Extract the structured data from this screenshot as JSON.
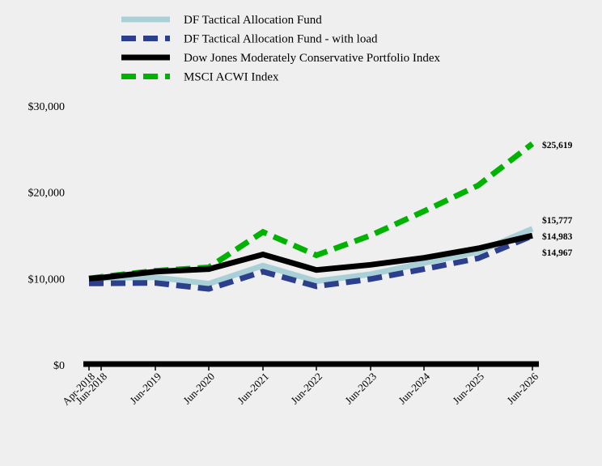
{
  "chart_data": {
    "type": "line",
    "title": "",
    "xlabel": "",
    "ylabel": "",
    "x": [
      "Apr-2018",
      "Jun-2018",
      "Jun-2019",
      "Jun-2020",
      "Jun-2021",
      "Jun-2022",
      "Jun-2023",
      "Jun-2024",
      "Jun-2025",
      "Jun-2026"
    ],
    "x_ticks": [
      "Apr-2018",
      "Jun-2018",
      "Jun-2019",
      "Jun-2020",
      "Jun-2021",
      "Jun-2022",
      "Jun-2023",
      "Jun-2024",
      "Jun-2025",
      "Jun-2026"
    ],
    "y_ticks": [
      "$0",
      "$10,000",
      "$20,000",
      "$30,000"
    ],
    "ylim": [
      0,
      30000
    ],
    "grid": false,
    "legend": "top",
    "series": [
      {
        "name": "DF Tactical Allocation Fund",
        "color": "#a8d0d6",
        "style": "solid",
        "values": [
          10000,
          10050,
          10150,
          9400,
          11500,
          9700,
          10500,
          11800,
          13100,
          15777
        ],
        "end_label": "$15,777"
      },
      {
        "name": "DF Tactical Allocation Fund - with load",
        "color": "#2c3f8c",
        "style": "dashed",
        "values": [
          9450,
          9450,
          9500,
          8800,
          10800,
          9100,
          9950,
          11100,
          12350,
          14967
        ],
        "end_label": "$14,967"
      },
      {
        "name": "Dow Jones Moderately Conservative Portfolio Index",
        "color": "#000000",
        "style": "solid",
        "values": [
          10000,
          10100,
          10800,
          11100,
          12800,
          11000,
          11600,
          12400,
          13500,
          14983
        ],
        "end_label": "$14,983"
      },
      {
        "name": "MSCI ACWI Index",
        "color": "#00b300",
        "style": "dashed",
        "values": [
          10000,
          10200,
          10900,
          11300,
          15400,
          12700,
          15000,
          17800,
          20800,
          25619
        ],
        "end_label": "$25,619"
      }
    ]
  }
}
